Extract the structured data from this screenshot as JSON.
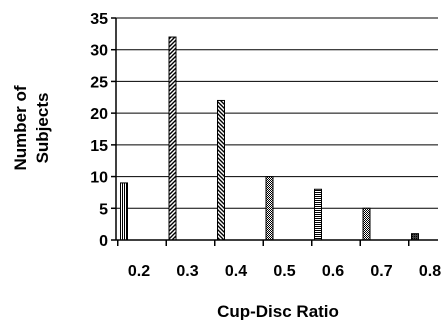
{
  "chart_data": {
    "type": "bar",
    "categories": [
      "0.2",
      "0.3",
      "0.4",
      "0.5",
      "0.6",
      "0.7",
      "0.8"
    ],
    "values": [
      9,
      32,
      22,
      10,
      8,
      5,
      1
    ],
    "title": "",
    "xlabel": "Cup-Disc Ratio",
    "ylabel": "Number of Subjects",
    "ylabel_lines": [
      "Number of",
      "Subjects"
    ],
    "ylim": [
      0,
      35
    ],
    "yticks": [
      "0",
      "5",
      "10",
      "15",
      "20",
      "25",
      "30",
      "35"
    ],
    "grid": true,
    "legend": "none",
    "colors": {
      "axis": "#000000",
      "bar_fill": "#ffffff",
      "bar_stroke": "#000000"
    }
  }
}
